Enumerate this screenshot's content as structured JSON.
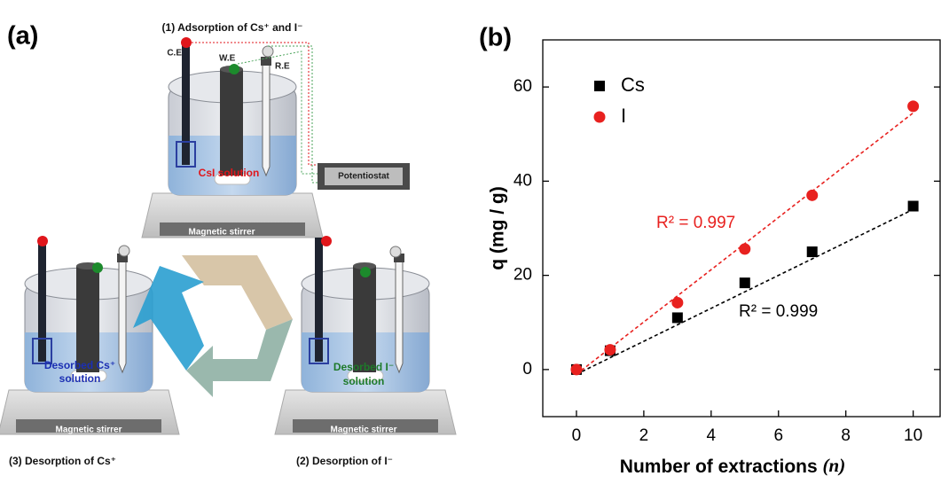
{
  "diagram": {
    "panel_label": "(a)",
    "step1": "(1) Adsorption of Cs⁺ and I⁻",
    "step2": "(2) Desorption of I⁻",
    "step3": "(3) Desorption of Cs⁺",
    "electrodes": [
      "C.E",
      "W.E",
      "R.E"
    ],
    "potentiostat": "Potentiostat",
    "stirrer": "Magnetic stirrer",
    "solution1": "CsI solution",
    "solution2": [
      "Desorbed I⁻",
      "solution"
    ],
    "solution3": [
      "Desorbed Cs⁺",
      "solution"
    ]
  },
  "chart_data": {
    "type": "scatter",
    "panel_label": "(b)",
    "x_label": "Number of extractions",
    "x_label_var": "(n)",
    "y_label": "q (mg / g)",
    "x": [
      0,
      1,
      3,
      5,
      7,
      10
    ],
    "series": [
      {
        "name": "Cs",
        "color": "#000000",
        "marker": "square",
        "values": [
          0,
          4,
          11,
          18.4,
          25,
          34.7
        ],
        "fit": {
          "x": [
            0,
            10
          ],
          "y": [
            -1,
            34
          ]
        }
      },
      {
        "name": "I",
        "color": "#e8211f",
        "marker": "circle",
        "values": [
          0,
          4.2,
          14.2,
          25.6,
          37,
          55.9
        ],
        "fit": {
          "x": [
            0,
            10
          ],
          "y": [
            -1,
            54.5
          ]
        }
      }
    ],
    "annotations": [
      {
        "text": "R² = 0.997",
        "color": "#e8211f"
      },
      {
        "text": "R² = 0.999",
        "color": "#000000"
      }
    ],
    "xlim": [
      -1,
      10.8
    ],
    "ylim": [
      -10,
      70
    ],
    "xticks": [
      0,
      2,
      4,
      6,
      8,
      10
    ],
    "yticks": [
      0,
      20,
      40,
      60
    ],
    "legend": "upper left",
    "grid": false
  }
}
